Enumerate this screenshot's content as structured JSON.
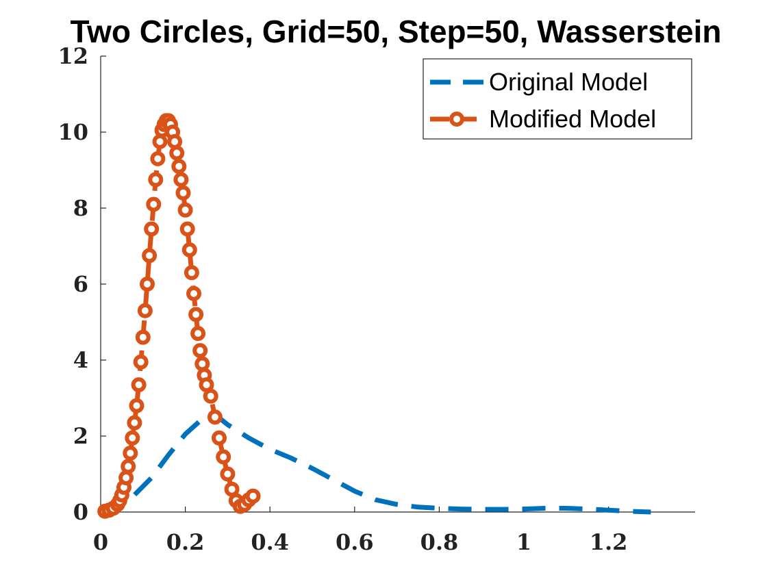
{
  "chart_data": {
    "type": "line",
    "title": "Two Circles, Grid=50, Step=50, Wasserstein",
    "xlabel": "",
    "ylabel": "",
    "xlim": [
      0,
      1.4
    ],
    "ylim": [
      0,
      12
    ],
    "xticks": [
      0,
      0.2,
      0.4,
      0.6,
      0.8,
      1,
      1.2
    ],
    "xtick_labels": [
      "0",
      "0.2",
      "0.4",
      "0.6",
      "0.8",
      "1",
      "1.2"
    ],
    "yticks": [
      0,
      2,
      4,
      6,
      8,
      10,
      12
    ],
    "ytick_labels": [
      "0",
      "2",
      "4",
      "6",
      "8",
      "10",
      "12"
    ],
    "grid": false,
    "legend_position": "top-right",
    "series": [
      {
        "name": "Original Model",
        "style": "dashed",
        "color": "#0072BD",
        "x": [
          0,
          0.05,
          0.08,
          0.12,
          0.16,
          0.2,
          0.24,
          0.26,
          0.28,
          0.3,
          0.35,
          0.4,
          0.45,
          0.5,
          0.55,
          0.6,
          0.65,
          0.7,
          0.75,
          0.8,
          0.85,
          0.9,
          0.95,
          1.0,
          1.05,
          1.1,
          1.15,
          1.2,
          1.25,
          1.3
        ],
        "y": [
          0.1,
          0.25,
          0.45,
          0.9,
          1.5,
          2.05,
          2.45,
          2.52,
          2.48,
          2.3,
          1.95,
          1.65,
          1.42,
          1.15,
          0.85,
          0.55,
          0.32,
          0.2,
          0.13,
          0.1,
          0.08,
          0.07,
          0.07,
          0.08,
          0.1,
          0.1,
          0.08,
          0.05,
          0.02,
          0.0
        ]
      },
      {
        "name": "Modified Model",
        "style": "dashed-circle-markers",
        "color": "#D95319",
        "x": [
          0.01,
          0.02,
          0.03,
          0.04,
          0.045,
          0.05,
          0.055,
          0.06,
          0.065,
          0.07,
          0.075,
          0.08,
          0.085,
          0.09,
          0.095,
          0.1,
          0.105,
          0.11,
          0.115,
          0.12,
          0.125,
          0.13,
          0.135,
          0.14,
          0.145,
          0.15,
          0.155,
          0.16,
          0.165,
          0.17,
          0.175,
          0.18,
          0.185,
          0.19,
          0.195,
          0.2,
          0.205,
          0.21,
          0.215,
          0.22,
          0.225,
          0.23,
          0.235,
          0.24,
          0.245,
          0.25,
          0.26,
          0.27,
          0.28,
          0.29,
          0.3,
          0.31,
          0.32,
          0.33,
          0.34,
          0.35,
          0.36
        ],
        "y": [
          0.02,
          0.05,
          0.1,
          0.2,
          0.3,
          0.45,
          0.65,
          0.9,
          1.2,
          1.55,
          1.95,
          2.35,
          2.8,
          3.35,
          3.95,
          4.6,
          5.3,
          6.0,
          6.75,
          7.45,
          8.1,
          8.75,
          9.3,
          9.75,
          10.05,
          10.2,
          10.3,
          10.3,
          10.2,
          10.0,
          9.75,
          9.45,
          9.1,
          8.75,
          8.4,
          7.95,
          7.45,
          6.9,
          6.3,
          5.75,
          5.2,
          4.7,
          4.25,
          3.9,
          3.6,
          3.35,
          3.05,
          2.5,
          1.95,
          1.45,
          1.0,
          0.6,
          0.3,
          0.15,
          0.2,
          0.32,
          0.42
        ]
      }
    ]
  }
}
